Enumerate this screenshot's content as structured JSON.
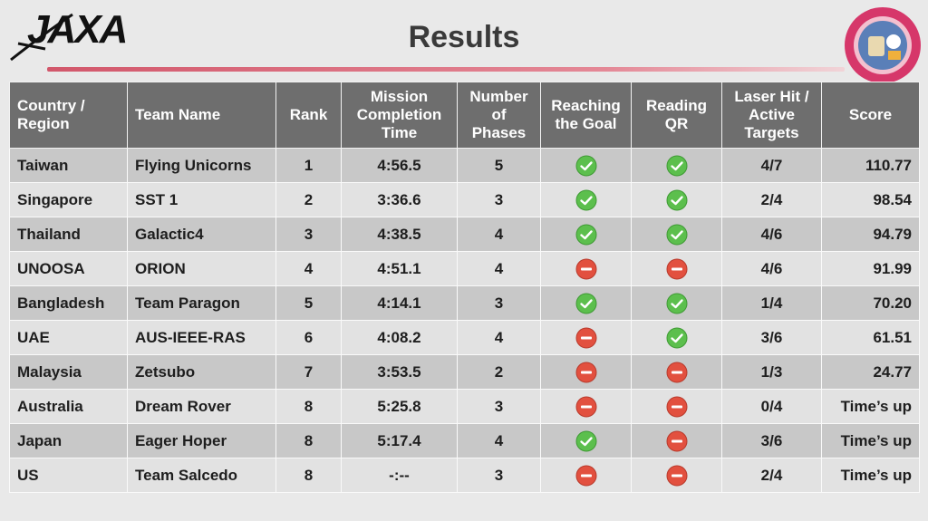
{
  "header": {
    "title": "Results",
    "logo_text": "JAXA",
    "badge_icon": "kibo-robot-programming-challenge-badge-icon"
  },
  "colors": {
    "header_bg": "#6e6e6e",
    "row_dark": "#c8c8c8",
    "row_light": "#e2e2e2",
    "success": "#5cbf4d",
    "fail": "#e2503f",
    "accent_line": "#d2576b"
  },
  "table": {
    "columns": [
      {
        "label": "Country / Region"
      },
      {
        "label": "Team Name"
      },
      {
        "label": "Rank"
      },
      {
        "label": "Mission Completion Time"
      },
      {
        "label": "Number of Phases"
      },
      {
        "label": "Reaching the Goal"
      },
      {
        "label": "Reading QR"
      },
      {
        "label": "Laser Hit / Active Targets"
      },
      {
        "label": "Score"
      }
    ],
    "rows": [
      {
        "country": "Taiwan",
        "team": "Flying Unicorns",
        "rank": "1",
        "time": "4:56.5",
        "phases": "5",
        "goal": "success",
        "qr": "success",
        "laser": "4/7",
        "score": "110.77"
      },
      {
        "country": "Singapore",
        "team": "SST 1",
        "rank": "2",
        "time": "3:36.6",
        "phases": "3",
        "goal": "success",
        "qr": "success",
        "laser": "2/4",
        "score": "98.54"
      },
      {
        "country": "Thailand",
        "team": "Galactic4",
        "rank": "3",
        "time": "4:38.5",
        "phases": "4",
        "goal": "success",
        "qr": "success",
        "laser": "4/6",
        "score": "94.79"
      },
      {
        "country": "UNOOSA",
        "team": "ORION",
        "rank": "4",
        "time": "4:51.1",
        "phases": "4",
        "goal": "fail",
        "qr": "fail",
        "laser": "4/6",
        "score": "91.99"
      },
      {
        "country": "Bangladesh",
        "team": "Team Paragon",
        "rank": "5",
        "time": "4:14.1",
        "phases": "3",
        "goal": "success",
        "qr": "success",
        "laser": "1/4",
        "score": "70.20"
      },
      {
        "country": "UAE",
        "team": "AUS-IEEE-RAS",
        "rank": "6",
        "time": "4:08.2",
        "phases": "4",
        "goal": "fail",
        "qr": "success",
        "laser": "3/6",
        "score": "61.51"
      },
      {
        "country": "Malaysia",
        "team": "Zetsubo",
        "rank": "7",
        "time": "3:53.5",
        "phases": "2",
        "goal": "fail",
        "qr": "fail",
        "laser": "1/3",
        "score": "24.77"
      },
      {
        "country": "Australia",
        "team": "Dream Rover",
        "rank": "8",
        "time": "5:25.8",
        "phases": "3",
        "goal": "fail",
        "qr": "fail",
        "laser": "0/4",
        "score": "Time’s up"
      },
      {
        "country": "Japan",
        "team": "Eager Hoper",
        "rank": "8",
        "time": "5:17.4",
        "phases": "4",
        "goal": "success",
        "qr": "fail",
        "laser": "3/6",
        "score": "Time’s up"
      },
      {
        "country": "US",
        "team": "Team Salcedo",
        "rank": "8",
        "time": "-:--",
        "phases": "3",
        "goal": "fail",
        "qr": "fail",
        "laser": "2/4",
        "score": "Time’s up"
      }
    ]
  }
}
